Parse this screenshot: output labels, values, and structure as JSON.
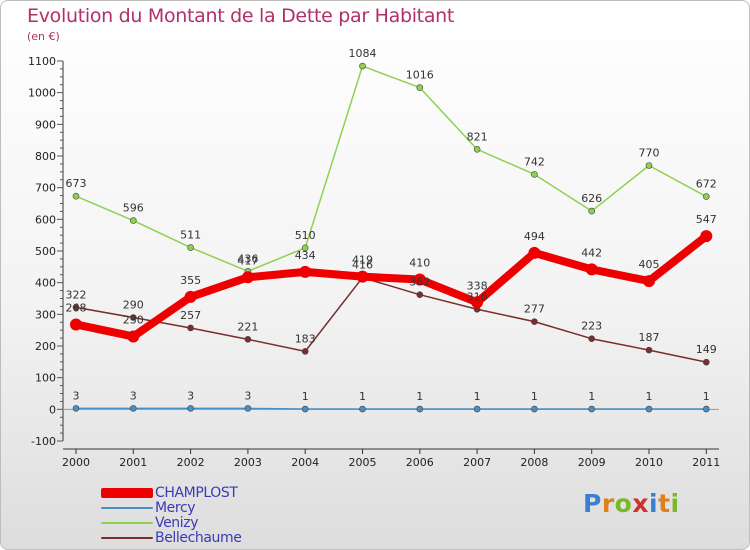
{
  "title": "Evolution du Montant de la Dette par Habitant",
  "subtitle": "(en €)",
  "logo_text": "Proxiti",
  "chart_data": {
    "type": "line",
    "title": "Evolution du Montant de la Dette par Habitant",
    "subtitle": "(en €)",
    "categories": [
      "2000",
      "2001",
      "2002",
      "2003",
      "2004",
      "2005",
      "2006",
      "2007",
      "2008",
      "2009",
      "2010",
      "2011"
    ],
    "ylim": [
      -100,
      1100
    ],
    "yticks": [
      "-100",
      "0",
      "100",
      "200",
      "300",
      "400",
      "500",
      "600",
      "700",
      "800",
      "900",
      "1000",
      "1100"
    ],
    "grid": false,
    "legend_position": "bottom-left",
    "series": [
      {
        "name": "CHAMPLOST",
        "color": "#ee0000",
        "values": [
          268,
          230,
          355,
          417,
          434,
          419,
          410,
          338,
          494,
          442,
          405,
          547
        ],
        "labels": [
          "268",
          "230",
          "355",
          "417",
          "434",
          "419",
          "410",
          "338",
          "494",
          "442",
          "405",
          "547"
        ]
      },
      {
        "name": "Mercy",
        "color": "#4a8fc4",
        "values": [
          3,
          3,
          3,
          3,
          1,
          1,
          1,
          1,
          1,
          1,
          1,
          1
        ],
        "labels": [
          "3",
          "3",
          "3",
          "3",
          "1",
          "1",
          "1",
          "1",
          "1",
          "1",
          "1",
          "1"
        ]
      },
      {
        "name": "Venizy",
        "color": "#8fd14f",
        "values": [
          673,
          596,
          511,
          436,
          510,
          1084,
          1016,
          821,
          742,
          626,
          770,
          672
        ],
        "labels": [
          "673",
          "596",
          "511",
          "436",
          "510",
          "1084",
          "1016",
          "821",
          "742",
          "626",
          "770",
          "672"
        ]
      },
      {
        "name": "Bellechaume",
        "color": "#7b2d2d",
        "values": [
          322,
          290,
          257,
          221,
          183,
          416,
          362,
          316,
          277,
          223,
          187,
          149
        ],
        "labels": [
          "322",
          "290",
          "257",
          "221",
          "183",
          "416",
          "362",
          "316",
          "277",
          "223",
          "187",
          "149"
        ]
      }
    ]
  }
}
